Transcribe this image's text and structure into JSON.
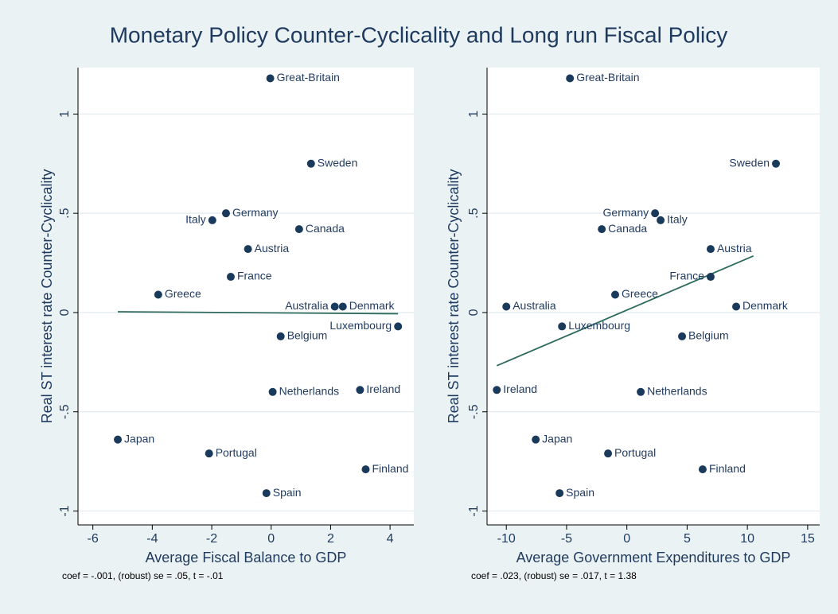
{
  "title": "Monetary Policy Counter-Cyclicality and Long run Fiscal Policy",
  "chart_data": [
    {
      "type": "scatter",
      "x_label": "Average Fiscal Balance to GDP",
      "y_label": "Real ST interest rate Counter-Cyclicality",
      "note": "coef = -.001, (robust) se = .05, t = -.01",
      "color": "#1a3a5c",
      "fit_color": "#2e6b5e",
      "grid": true,
      "labels": [
        "Great-Britain",
        "Sweden",
        "Germany",
        "Italy",
        "Canada",
        "Austria",
        "France",
        "Greece",
        "Australia",
        "Denmark",
        "Luxembourg",
        "Belgium",
        "Netherlands",
        "Ireland",
        "Japan",
        "Portugal",
        "Finland",
        "Spain"
      ],
      "x": [
        -0.03,
        1.34,
        -1.52,
        -1.98,
        0.94,
        -0.78,
        -1.36,
        -3.8,
        2.14,
        2.41,
        4.27,
        0.32,
        0.05,
        2.99,
        -5.16,
        -2.09,
        3.18,
        -0.16
      ],
      "y": [
        1.18,
        0.75,
        0.5,
        0.465,
        0.42,
        0.32,
        0.18,
        0.09,
        0.03,
        0.03,
        -0.07,
        -0.12,
        -0.4,
        -0.39,
        -0.64,
        -0.71,
        -0.79,
        -0.91
      ],
      "fit": {
        "x": [
          -5.16,
          4.27
        ],
        "y": [
          0.004,
          -0.006
        ]
      },
      "xlim": [
        -6.5,
        4.8
      ],
      "ylim": [
        -1.07,
        1.234
      ],
      "xticks": [
        -6,
        -4,
        -2,
        0,
        2,
        4
      ],
      "yticks": [
        -1,
        {
          "value": -0.5,
          "label": "-.5"
        },
        0,
        {
          "value": 0.5,
          "label": ".5"
        },
        1
      ]
    },
    {
      "type": "scatter",
      "x_label": "Average Government Expenditures to GDP",
      "y_label": "Real ST interest rate Counter-Cyclicality",
      "note": "coef = .023, (robust) se = .017, t = 1.38",
      "color": "#1a3a5c",
      "fit_color": "#2e6b5e",
      "grid": true,
      "labels": [
        "Great-Britain",
        "Sweden",
        "Germany",
        "Italy",
        "Canada",
        "Austria",
        "France",
        "Greece",
        "Australia",
        "Denmark",
        "Luxembourg",
        "Belgium",
        "Netherlands",
        "Ireland",
        "Japan",
        "Portugal",
        "Finland",
        "Spain"
      ],
      "x": [
        -4.72,
        12.37,
        2.34,
        2.8,
        -2.08,
        6.95,
        6.95,
        -0.97,
        -10.0,
        9.07,
        -5.38,
        4.58,
        1.15,
        -10.79,
        -7.56,
        -1.56,
        6.29,
        -5.58
      ],
      "y": [
        1.18,
        0.75,
        0.5,
        0.465,
        0.42,
        0.32,
        0.18,
        0.09,
        0.03,
        0.03,
        -0.07,
        -0.12,
        -0.4,
        -0.39,
        -0.64,
        -0.71,
        -0.79,
        -0.91
      ],
      "fit": {
        "x": [
          -10.79,
          10.5
        ],
        "y": [
          -0.268,
          0.285
        ]
      },
      "xlim": [
        -11.6,
        16.0
      ],
      "ylim": [
        -1.07,
        1.234
      ],
      "xticks": [
        -10,
        -5,
        0,
        5,
        10,
        15
      ],
      "yticks": [
        -1,
        {
          "value": -0.5,
          "label": "-.5"
        },
        0,
        {
          "value": 0.5,
          "label": ".5"
        },
        1
      ]
    }
  ]
}
